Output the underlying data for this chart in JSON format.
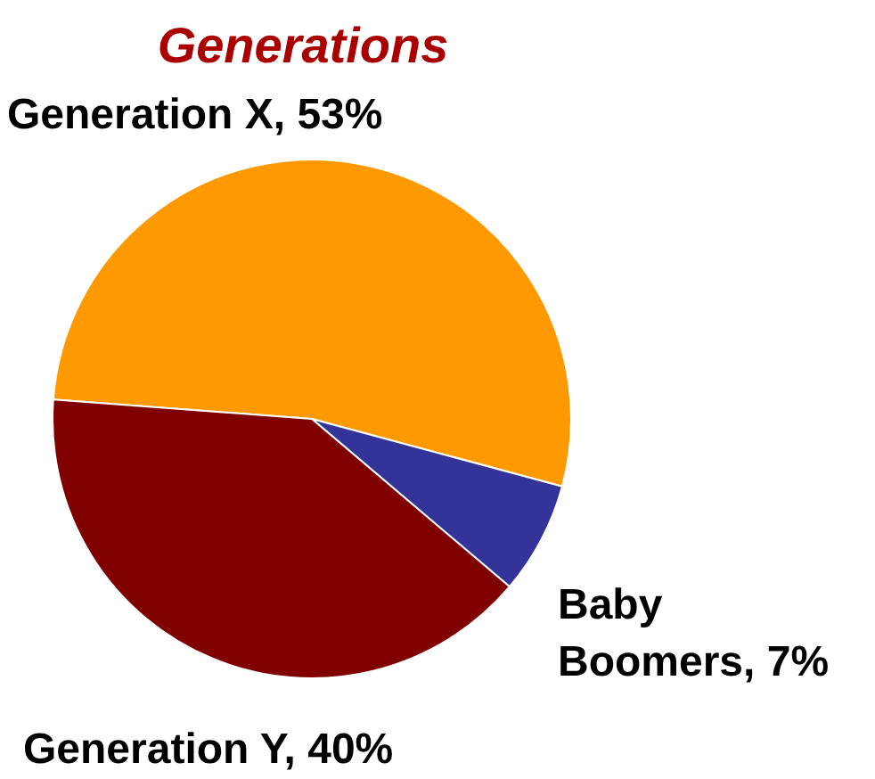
{
  "chart_data": {
    "type": "pie",
    "title": "Generations",
    "categories": [
      "Generation X",
      "Baby Boomers",
      "Generation Y"
    ],
    "values": [
      53,
      7,
      40
    ],
    "value_labels": [
      "53%",
      "7%",
      "40%"
    ],
    "colors": [
      "#ff9900",
      "#333399",
      "#800000"
    ],
    "legend": false
  }
}
